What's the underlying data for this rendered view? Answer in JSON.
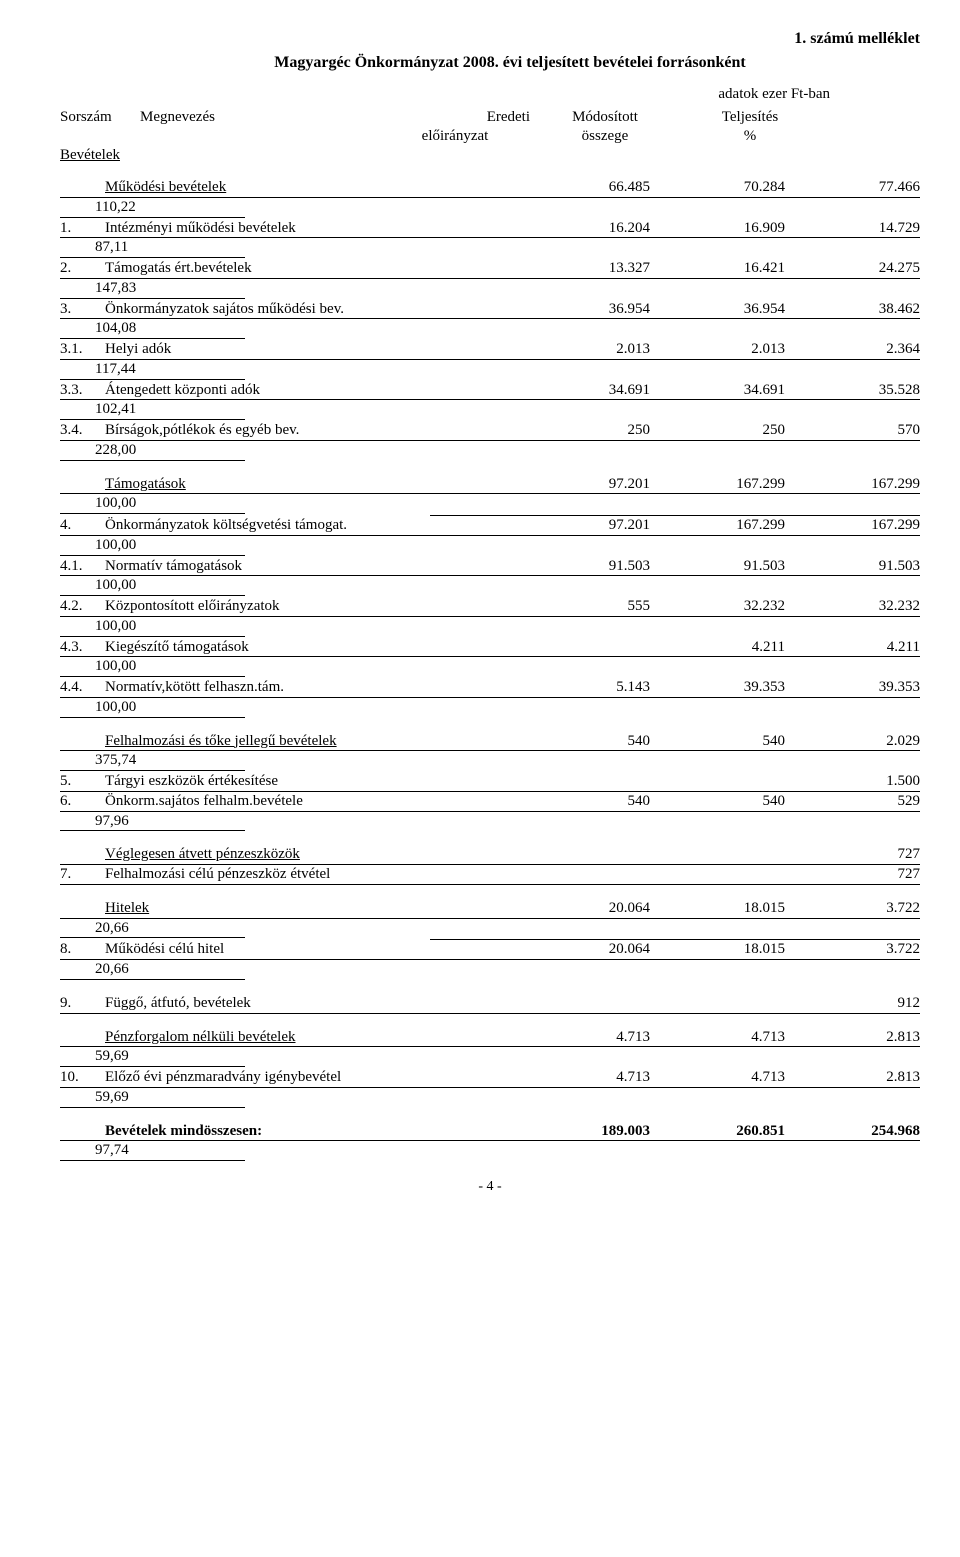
{
  "header": {
    "attachment": "1. számú melléklet",
    "title": "Magyargéc  Önkormányzat  2008. évi teljesített bevételei forrásonként",
    "adatok": "adatok ezer Ft-ban",
    "cols": {
      "sorszam": "Sorszám",
      "megnevezes": "Megnevezés",
      "eredeti": "Eredeti",
      "modositott": "Módosított",
      "teljesites": "Teljesítés",
      "eloiranyzat": "előirányzat",
      "osszege": "összege",
      "percent": "%"
    },
    "bevetelek": "Bevételek"
  },
  "groups": [
    {
      "titleRow": {
        "num": "",
        "name": "Működési bevételek",
        "c1": "66.485",
        "c2": "70.284",
        "c3": "77.466",
        "underline": true
      },
      "sub": "110,22",
      "rows": [
        {
          "num": "1.",
          "name": "Intézményi működési bevételek",
          "c1": "16.204",
          "c2": "16.909",
          "c3": "14.729",
          "sub": "87,11"
        },
        {
          "num": "2.",
          "name": "Támogatás ért.bevételek",
          "c1": "13.327",
          "c2": "16.421",
          "c3": "24.275",
          "sub": "147,83"
        },
        {
          "num": "3.",
          "name": "Önkormányzatok sajátos működési bev.",
          "c1": "36.954",
          "c2": "36.954",
          "c3": "38.462",
          "sub": "104,08"
        },
        {
          "num": "3.1.",
          "name": "Helyi adók",
          "c1": "2.013",
          "c2": "2.013",
          "c3": "2.364",
          "sub": "117,44"
        },
        {
          "num": "3.3.",
          "name": "Átengedett központi adók",
          "c1": "34.691",
          "c2": "34.691",
          "c3": "35.528",
          "sub": "102,41"
        },
        {
          "num": "3.4.",
          "name": "Bírságok,pótlékok és egyéb bev.",
          "c1": "250",
          "c2": "250",
          "c3": "570",
          "sub": "228,00"
        }
      ]
    },
    {
      "titleRow": {
        "num": "",
        "name": "Támogatások",
        "c1": "97.201",
        "c2": "167.299",
        "c3": "167.299",
        "underline": true
      },
      "sub": "100,00",
      "partialLineAfterTitle": true,
      "rows": [
        {
          "num": "4.",
          "name": "Önkormányzatok költségvetési támogat.",
          "c1": "97.201",
          "c2": "167.299",
          "c3": "167.299",
          "sub": "100,00"
        },
        {
          "num": "4.1.",
          "name": "Normatív támogatások",
          "c1": "91.503",
          "c2": "91.503",
          "c3": "91.503",
          "sub": "100,00"
        },
        {
          "num": "4.2.",
          "name": "Központosított előirányzatok",
          "c1": "555",
          "c2": "32.232",
          "c3": "32.232",
          "sub": "100,00"
        },
        {
          "num": "4.3.",
          "name": "Kiegészítő támogatások",
          "c1": "",
          "c2": "4.211",
          "c3": "4.211",
          "sub": "100,00"
        },
        {
          "num": "4.4.",
          "name": "Normatív,kötött felhaszn.tám.",
          "c1": "5.143",
          "c2": "39.353",
          "c3": "39.353",
          "sub": "100,00"
        }
      ]
    },
    {
      "titleRow": {
        "num": "",
        "name": "Felhalmozási és tőke jellegű bevételek",
        "c1": "540",
        "c2": "540",
        "c3": "2.029",
        "underline": true
      },
      "sub": "375,74",
      "rows": [
        {
          "num": "5.",
          "name": "Tárgyi eszközök értékesítése",
          "c1": "",
          "c2": "",
          "c3": "1.500"
        },
        {
          "num": "6.",
          "name": "Önkorm.sajátos felhalm.bevétele",
          "c1": "540",
          "c2": "540",
          "c3": "529",
          "sub": "97,96"
        }
      ]
    },
    {
      "titleRow": {
        "num": "",
        "name": "Véglegesen átvett pénzeszközök",
        "c1": "",
        "c2": "",
        "c3": "727",
        "underline": true
      },
      "rows": [
        {
          "num": "7.",
          "name": "Felhalmozási célú pénzeszköz étvétel",
          "c1": "",
          "c2": "",
          "c3": "727"
        }
      ]
    },
    {
      "titleRow": {
        "num": "",
        "name": "Hitelek",
        "c1": "20.064",
        "c2": "18.015",
        "c3": "3.722",
        "underline": true
      },
      "sub": "20,66",
      "partialLineAfterTitle": true,
      "rows": [
        {
          "num": "8.",
          "name": "Működési célú hitel",
          "c1": "20.064",
          "c2": "18.015",
          "c3": "3.722",
          "sub": "20,66"
        }
      ]
    },
    {
      "rows": [
        {
          "num": "9.",
          "name": "Függő, átfutó, bevételek",
          "c1": "",
          "c2": "",
          "c3": "912"
        }
      ]
    },
    {
      "titleRow": {
        "num": "",
        "name": "Pénzforgalom nélküli bevételek",
        "c1": "4.713",
        "c2": "4.713",
        "c3": "2.813",
        "underline": true
      },
      "sub": "59,69",
      "rows": [
        {
          "num": "10.",
          "name": "Előző évi pénzmaradvány igénybevétel",
          "c1": "4.713",
          "c2": "4.713",
          "c3": "2.813",
          "sub": "59,69"
        }
      ]
    }
  ],
  "total": {
    "label": "Bevételek mindösszesen:",
    "c1": "189.003",
    "c2": "260.851",
    "c3": "254.968",
    "sub": "97,74"
  },
  "pagefoot": "- 4 -"
}
